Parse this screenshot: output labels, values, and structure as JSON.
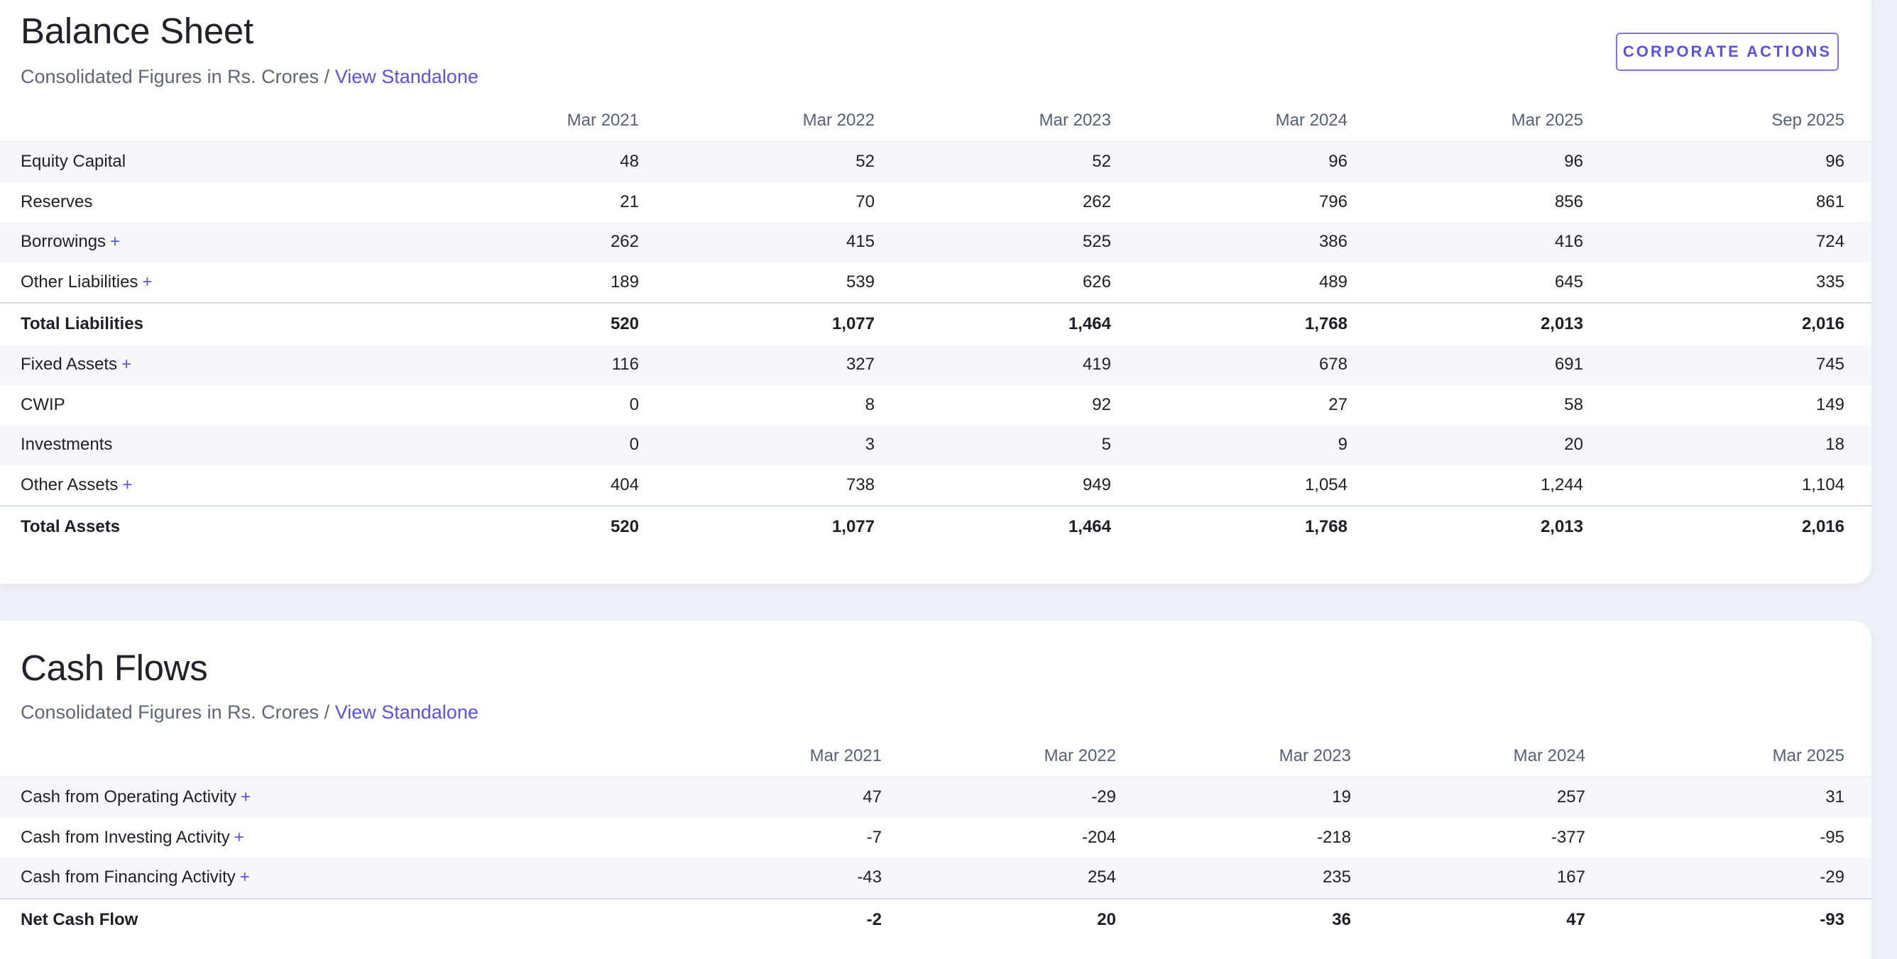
{
  "balance_sheet": {
    "title": "Balance Sheet",
    "subtitle_prefix": "Consolidated Figures in Rs. Crores / ",
    "subtitle_link": "View Standalone",
    "corporate_actions_label": "CORPORATE ACTIONS",
    "columns": [
      "Mar 2021",
      "Mar 2022",
      "Mar 2023",
      "Mar 2024",
      "Mar 2025",
      "Sep 2025"
    ],
    "rows": [
      {
        "label": "Equity Capital",
        "expandable": false,
        "values": [
          "48",
          "52",
          "52",
          "96",
          "96",
          "96"
        ]
      },
      {
        "label": "Reserves",
        "expandable": false,
        "values": [
          "21",
          "70",
          "262",
          "796",
          "856",
          "861"
        ]
      },
      {
        "label": "Borrowings",
        "expandable": true,
        "values": [
          "262",
          "415",
          "525",
          "386",
          "416",
          "724"
        ]
      },
      {
        "label": "Other Liabilities",
        "expandable": true,
        "values": [
          "189",
          "539",
          "626",
          "489",
          "645",
          "335"
        ]
      },
      {
        "label": "Total Liabilities",
        "total": true,
        "values": [
          "520",
          "1,077",
          "1,464",
          "1,768",
          "2,013",
          "2,016"
        ]
      },
      {
        "label": "Fixed Assets",
        "expandable": true,
        "values": [
          "116",
          "327",
          "419",
          "678",
          "691",
          "745"
        ]
      },
      {
        "label": "CWIP",
        "expandable": false,
        "values": [
          "0",
          "8",
          "92",
          "27",
          "58",
          "149"
        ]
      },
      {
        "label": "Investments",
        "expandable": false,
        "values": [
          "0",
          "3",
          "5",
          "9",
          "20",
          "18"
        ]
      },
      {
        "label": "Other Assets",
        "expandable": true,
        "values": [
          "404",
          "738",
          "949",
          "1,054",
          "1,244",
          "1,104"
        ]
      },
      {
        "label": "Total Assets",
        "total": true,
        "values": [
          "520",
          "1,077",
          "1,464",
          "1,768",
          "2,013",
          "2,016"
        ]
      }
    ]
  },
  "cash_flows": {
    "title": "Cash Flows",
    "subtitle_prefix": "Consolidated Figures in Rs. Crores / ",
    "subtitle_link": "View Standalone",
    "columns": [
      "Mar 2021",
      "Mar 2022",
      "Mar 2023",
      "Mar 2024",
      "Mar 2025"
    ],
    "rows": [
      {
        "label": "Cash from Operating Activity",
        "expandable": true,
        "values": [
          "47",
          "-29",
          "19",
          "257",
          "31"
        ]
      },
      {
        "label": "Cash from Investing Activity",
        "expandable": true,
        "values": [
          "-7",
          "-204",
          "-218",
          "-377",
          "-95"
        ]
      },
      {
        "label": "Cash from Financing Activity",
        "expandable": true,
        "values": [
          "-43",
          "254",
          "235",
          "167",
          "-29"
        ]
      },
      {
        "label": "Net Cash Flow",
        "total": true,
        "values": [
          "-2",
          "20",
          "36",
          "47",
          "-93"
        ]
      }
    ]
  },
  "expand_symbol": "+",
  "colors": {
    "accent": "#5a52e0",
    "muted_text": "#5d6778",
    "stripe": "#f7f7fb",
    "background": "#edf0f7"
  }
}
